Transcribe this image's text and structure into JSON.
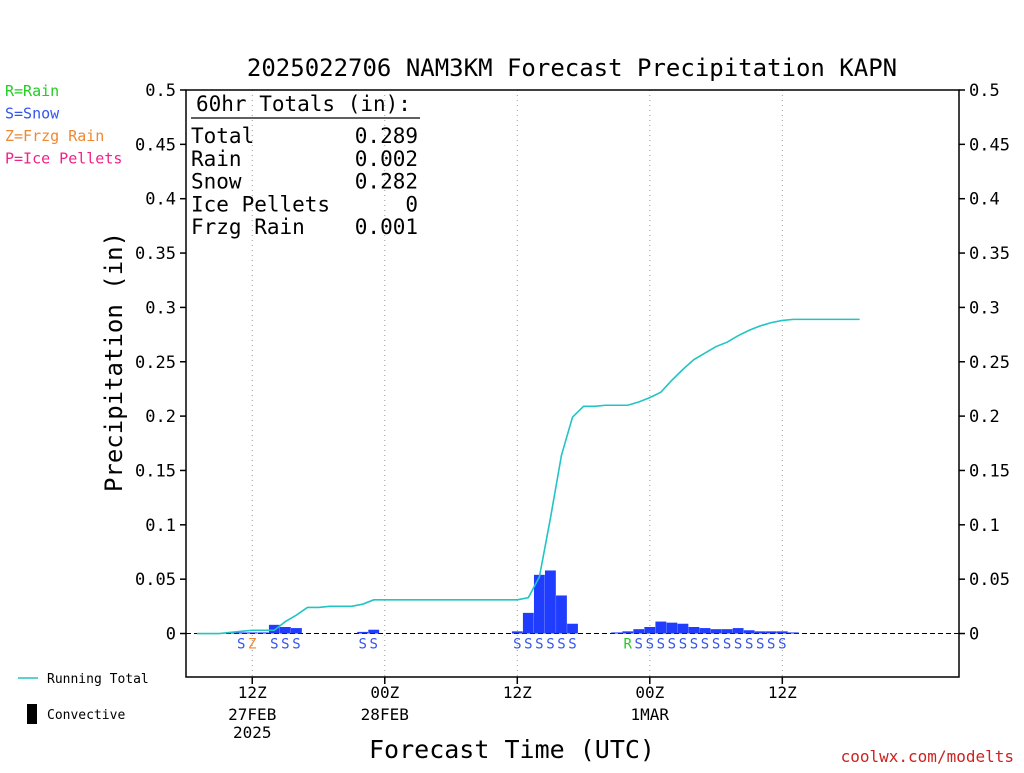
{
  "chart_data": {
    "type": "bar",
    "title": "2025022706 NAM3KM Forecast Precipitation KAPN",
    "xlabel": "Forecast Time (UTC)",
    "ylabel": "Precipitation (in)",
    "ylim": [
      -0.04,
      0.5
    ],
    "xlim": [
      0,
      70
    ],
    "y_ticks": [
      0,
      0.05,
      0.1,
      0.15,
      0.2,
      0.25,
      0.3,
      0.35,
      0.4,
      0.45,
      0.5
    ],
    "y_tick_labels": [
      "0",
      "0.05",
      "0.1",
      "0.15",
      "0.2",
      "0.25",
      "0.3",
      "0.35",
      "0.4",
      "0.45",
      "0.5"
    ],
    "x_ticks": [
      {
        "x": 6,
        "label": "12Z",
        "sub1": "27FEB",
        "sub2": "2025"
      },
      {
        "x": 18,
        "label": "00Z",
        "sub1": "28FEB",
        "sub2": ""
      },
      {
        "x": 30,
        "label": "12Z",
        "sub1": "",
        "sub2": ""
      },
      {
        "x": 42,
        "label": "00Z",
        "sub1": "1MAR",
        "sub2": ""
      },
      {
        "x": 54,
        "label": "12Z",
        "sub1": "",
        "sub2": ""
      }
    ],
    "grid": "vertical dotted at 00Z/12Z",
    "legend_top": [
      {
        "label": "R=Rain",
        "color": "#22cc22"
      },
      {
        "label": "S=Snow",
        "color": "#3355ee"
      },
      {
        "label": "Z=Frzg Rain",
        "color": "#ee8833"
      },
      {
        "label": "P=Ice Pellets",
        "color": "#ee2288"
      }
    ],
    "legend_bottom": [
      {
        "label": "Running Total",
        "kind": "line",
        "color": "#22c4c4"
      },
      {
        "label": "Convective",
        "kind": "bar",
        "color": "#000000"
      }
    ],
    "totals": {
      "header": "60hr Totals (in):",
      "rows": [
        {
          "label": "Total",
          "value": "0.289"
        },
        {
          "label": "Rain",
          "value": "0.002"
        },
        {
          "label": "Snow",
          "value": "0.282"
        },
        {
          "label": "Ice Pellets",
          "value": "0"
        },
        {
          "label": "Frzg Rain",
          "value": "0.001"
        }
      ]
    },
    "series": [
      {
        "name": "Running Total",
        "kind": "line",
        "color": "#22c4c4",
        "x": [
          1,
          2,
          3,
          4,
          5,
          6,
          7,
          8,
          9,
          10,
          11,
          12,
          13,
          14,
          15,
          16,
          17,
          18,
          19,
          20,
          21,
          22,
          23,
          24,
          25,
          26,
          27,
          28,
          29,
          30,
          31,
          32,
          33,
          34,
          35,
          36,
          37,
          38,
          39,
          40,
          41,
          42,
          43,
          44,
          45,
          46,
          47,
          48,
          49,
          50,
          51,
          52,
          53,
          54,
          55,
          56,
          57,
          58,
          59,
          60,
          61
        ],
        "values": [
          0,
          0,
          0,
          0.001,
          0.002,
          0.003,
          0.003,
          0.003,
          0.011,
          0.017,
          0.024,
          0.024,
          0.025,
          0.025,
          0.025,
          0.027,
          0.031,
          0.031,
          0.031,
          0.031,
          0.031,
          0.031,
          0.031,
          0.031,
          0.031,
          0.031,
          0.031,
          0.031,
          0.031,
          0.031,
          0.033,
          0.052,
          0.106,
          0.164,
          0.199,
          0.209,
          0.209,
          0.21,
          0.21,
          0.21,
          0.213,
          0.217,
          0.222,
          0.233,
          0.243,
          0.252,
          0.258,
          0.264,
          0.268,
          0.274,
          0.279,
          0.283,
          0.286,
          0.288,
          0.289,
          0.289,
          0.289,
          0.289,
          0.289,
          0.289,
          0.289
        ]
      },
      {
        "name": "Hourly Precipitation",
        "kind": "bar",
        "color": "#1f3cff",
        "x": [
          4,
          5,
          6,
          7,
          8,
          9,
          10,
          11,
          16,
          17,
          30,
          31,
          32,
          33,
          34,
          35,
          39,
          40,
          41,
          42,
          43,
          44,
          45,
          46,
          47,
          48,
          49,
          50,
          51,
          52,
          53,
          54,
          55
        ],
        "values": [
          0.001,
          0.001,
          0.001,
          0.001,
          0.008,
          0.006,
          0.005,
          0.0,
          0.0015,
          0.0035,
          0.002,
          0.019,
          0.054,
          0.058,
          0.035,
          0.009,
          0.001,
          0.002,
          0.004,
          0.006,
          0.011,
          0.01,
          0.009,
          0.006,
          0.005,
          0.004,
          0.004,
          0.005,
          0.003,
          0.002,
          0.002,
          0.002,
          0.001
        ]
      }
    ],
    "ptype_markers": [
      {
        "x": 5,
        "ch": "S",
        "color": "#3355ee"
      },
      {
        "x": 6,
        "ch": "Z",
        "color": "#ee8833"
      },
      {
        "x": 8,
        "ch": "S",
        "color": "#3355ee"
      },
      {
        "x": 9,
        "ch": "S",
        "color": "#3355ee"
      },
      {
        "x": 10,
        "ch": "S",
        "color": "#3355ee"
      },
      {
        "x": 16,
        "ch": "S",
        "color": "#3355ee"
      },
      {
        "x": 17,
        "ch": "S",
        "color": "#3355ee"
      },
      {
        "x": 30,
        "ch": "S",
        "color": "#3355ee"
      },
      {
        "x": 31,
        "ch": "S",
        "color": "#3355ee"
      },
      {
        "x": 32,
        "ch": "S",
        "color": "#3355ee"
      },
      {
        "x": 33,
        "ch": "S",
        "color": "#3355ee"
      },
      {
        "x": 34,
        "ch": "S",
        "color": "#3355ee"
      },
      {
        "x": 35,
        "ch": "S",
        "color": "#3355ee"
      },
      {
        "x": 40,
        "ch": "R",
        "color": "#22cc22"
      },
      {
        "x": 41,
        "ch": "S",
        "color": "#3355ee"
      },
      {
        "x": 42,
        "ch": "S",
        "color": "#3355ee"
      },
      {
        "x": 43,
        "ch": "S",
        "color": "#3355ee"
      },
      {
        "x": 44,
        "ch": "S",
        "color": "#3355ee"
      },
      {
        "x": 45,
        "ch": "S",
        "color": "#3355ee"
      },
      {
        "x": 46,
        "ch": "S",
        "color": "#3355ee"
      },
      {
        "x": 47,
        "ch": "S",
        "color": "#3355ee"
      },
      {
        "x": 48,
        "ch": "S",
        "color": "#3355ee"
      },
      {
        "x": 49,
        "ch": "S",
        "color": "#3355ee"
      },
      {
        "x": 50,
        "ch": "S",
        "color": "#3355ee"
      },
      {
        "x": 51,
        "ch": "S",
        "color": "#3355ee"
      },
      {
        "x": 52,
        "ch": "S",
        "color": "#3355ee"
      },
      {
        "x": 53,
        "ch": "S",
        "color": "#3355ee"
      },
      {
        "x": 54,
        "ch": "S",
        "color": "#3355ee"
      }
    ],
    "footer": "coolwx.com/modelts"
  }
}
